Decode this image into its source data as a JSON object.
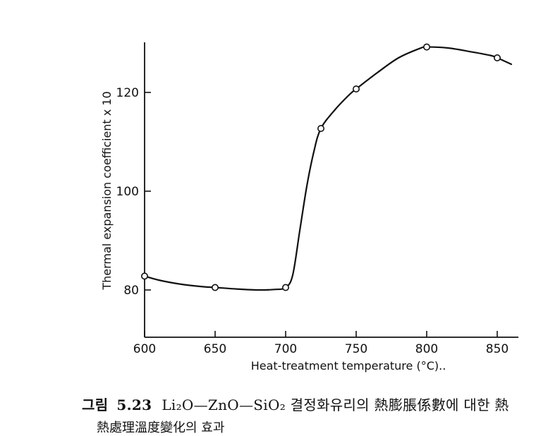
{
  "chart_data": {
    "type": "line",
    "title": "",
    "xlabel": "Heat-treatment temperature (°C)..",
    "ylabel": "Thermal expansion coefficient x 10",
    "x_ticks": [
      600,
      650,
      700,
      750,
      800,
      850
    ],
    "y_ticks": [
      80,
      100,
      120
    ],
    "xlim": [
      600,
      860
    ],
    "ylim": [
      70,
      131
    ],
    "grid": false,
    "series": [
      {
        "points": [
          {
            "x": 600,
            "y": 82.8
          },
          {
            "x": 650,
            "y": 80.5
          },
          {
            "x": 700,
            "y": 80.5
          },
          {
            "x": 725,
            "y": 112.7
          },
          {
            "x": 750,
            "y": 120.7
          },
          {
            "x": 800,
            "y": 129.2
          },
          {
            "x": 850,
            "y": 127.0
          }
        ],
        "curve": [
          [
            600,
            82.8
          ],
          [
            610,
            82.0
          ],
          [
            625,
            81.2
          ],
          [
            640,
            80.7
          ],
          [
            650,
            80.5
          ],
          [
            665,
            80.2
          ],
          [
            680,
            80.0
          ],
          [
            692,
            80.1
          ],
          [
            700,
            80.5
          ],
          [
            705,
            83
          ],
          [
            710,
            92
          ],
          [
            715,
            101
          ],
          [
            720,
            108
          ],
          [
            725,
            112.7
          ],
          [
            735,
            116.5
          ],
          [
            745,
            119.5
          ],
          [
            750,
            120.7
          ],
          [
            765,
            124
          ],
          [
            780,
            127
          ],
          [
            795,
            128.9
          ],
          [
            800,
            129.2
          ],
          [
            815,
            129.0
          ],
          [
            830,
            128.3
          ],
          [
            845,
            127.5
          ],
          [
            850,
            127.0
          ],
          [
            860,
            125.7
          ]
        ]
      }
    ]
  },
  "caption": {
    "label": "그림",
    "number": "5.23",
    "line1": "Li₂O—ZnO—SiO₂ 결정화유리의 熱膨脹係數에  대한 熱",
    "line2": "熱處理溫度變化의  효과"
  }
}
